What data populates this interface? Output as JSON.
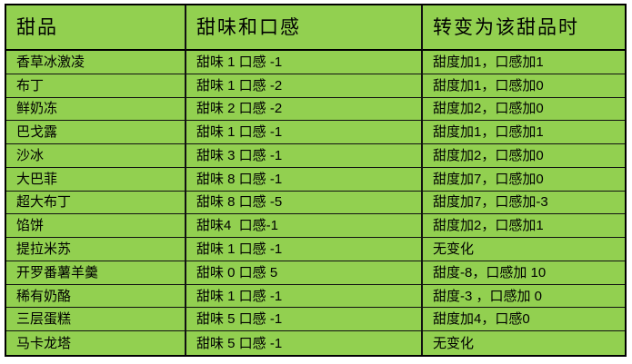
{
  "colors": {
    "cell_bg": "#92d050",
    "border": "#000000",
    "text": "#000000",
    "page_bg": "#ffffff"
  },
  "chart_data": {
    "type": "table",
    "columns": [
      "甜品",
      "甜味和口感",
      "转变为该甜品时"
    ],
    "rows": [
      [
        "香草冰激凌",
        "甜味 1 口感 -1",
        "甜度加1，口感加1"
      ],
      [
        "布丁",
        "甜味 1 口感 -2",
        "甜度加1，口感加0"
      ],
      [
        "鲜奶冻",
        "甜味 2 口感 -2",
        "甜度加2，口感加0"
      ],
      [
        "巴戈露",
        "甜味 1 口感 -1",
        "甜度加1，口感加1"
      ],
      [
        "沙冰",
        "甜味 3 口感 -1",
        "甜度加2，口感加0"
      ],
      [
        "大巴菲",
        "甜味 8 口感 -1",
        "甜度加7，口感加0"
      ],
      [
        "超大布丁",
        "甜味 8 口感 -5",
        "甜度加7，口感加-3"
      ],
      [
        "馅饼",
        "甜味4  口感-1",
        "甜度加2，口感加1"
      ],
      [
        "提拉米苏",
        "甜味 1 口感 -1",
        "无变化"
      ],
      [
        "开罗番薯羊羹",
        "甜味 0 口感 5",
        "甜度-8，口感加 10"
      ],
      [
        "稀有奶酪",
        "甜味 1 口感 -1",
        "甜度-3 ，口感加 0"
      ],
      [
        "三层蛋糕",
        "甜味 5 口感 -1",
        "甜度加4，口感0"
      ],
      [
        "马卡龙塔",
        "甜味 5 口感 -1",
        "无变化"
      ]
    ]
  }
}
